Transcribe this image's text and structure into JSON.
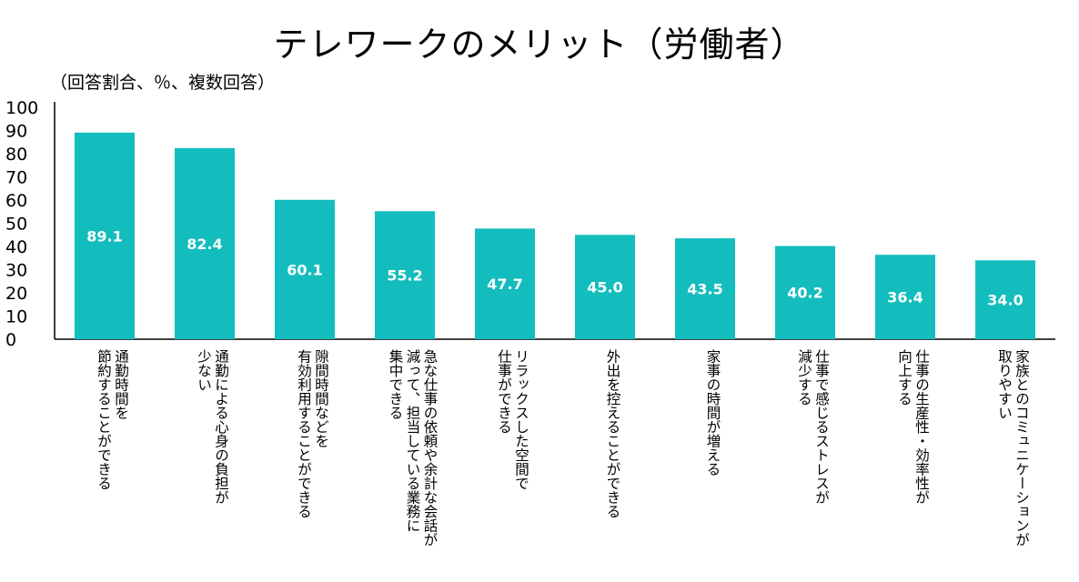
{
  "chart_data": {
    "type": "bar",
    "title": "テレワークのメリット（労働者）",
    "unit_note": "（回答割合、％、複数回答）",
    "ylim": [
      0,
      100
    ],
    "yticks": [
      0,
      10,
      20,
      30,
      40,
      50,
      60,
      70,
      80,
      90,
      100
    ],
    "bar_color": "#14bdbd",
    "categories": [
      "通勤時間を\n節約することができる",
      "通勤による心身の負担が\n少ない",
      "隙間時間などを\n有効利用することができる",
      "急な仕事の依頼や余計な会話が\n減って、担当している業務に\n集中できる",
      "リラックスした空間で\n仕事ができる",
      "外出を控えることができる",
      "家事の時間が増える",
      "仕事で感じるストレスが\n減少する",
      "仕事の生産性・効率性が\n向上する",
      "家族とのコミュニケーションが\n取りやすい"
    ],
    "values": [
      89.1,
      82.4,
      60.1,
      55.2,
      47.7,
      45.0,
      43.5,
      40.2,
      36.4,
      34.0
    ],
    "value_labels": [
      "89.1",
      "82.4",
      "60.1",
      "55.2",
      "47.7",
      "45.0",
      "43.5",
      "40.2",
      "36.4",
      "34.0"
    ]
  }
}
